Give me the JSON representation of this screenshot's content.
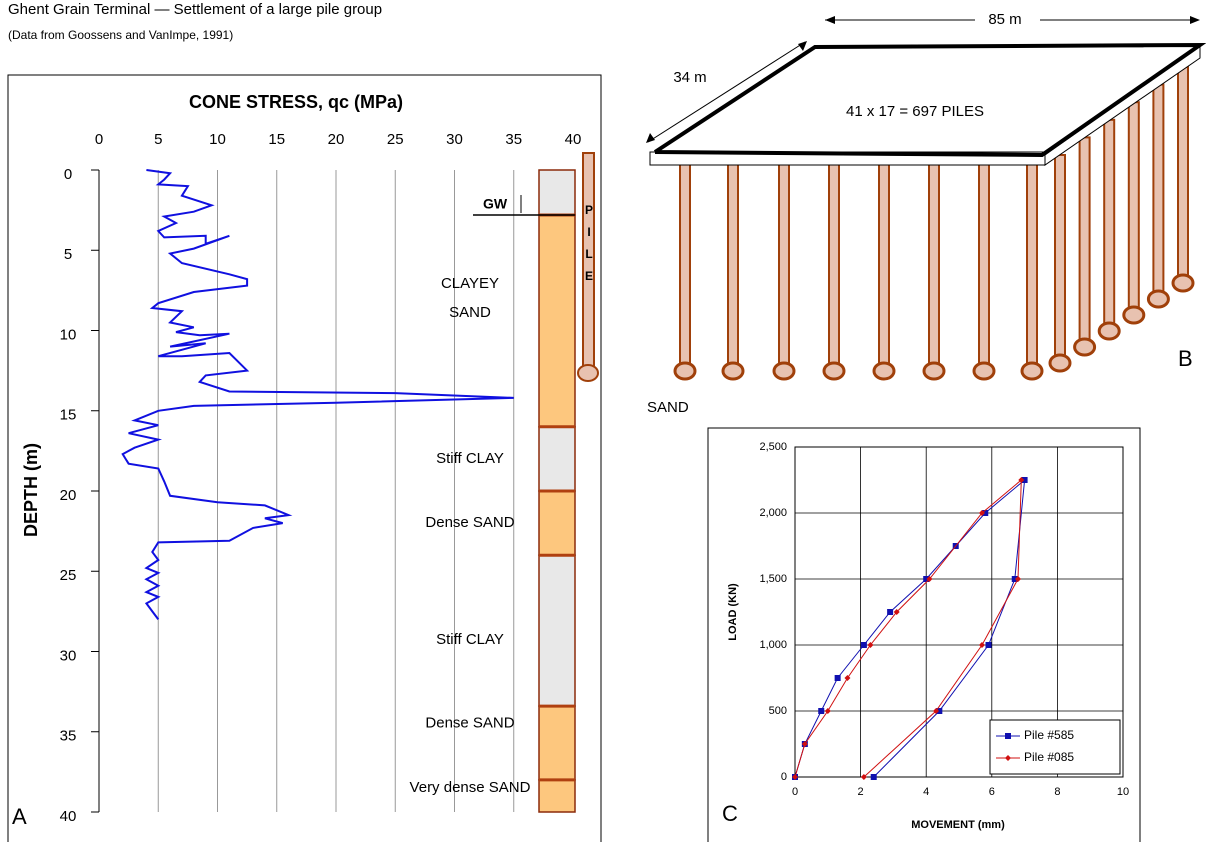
{
  "header": {
    "title": "Ghent Grain Terminal — Settlement of a large pile group",
    "subtitle": "(Data from Goossens and VanImpe, 1991)"
  },
  "chart_data": [
    {
      "type": "profile",
      "panel": "A",
      "title": "CONE STRESS, qc  (MPa)",
      "y_label": "DEPTH  (m)",
      "color": "#1010e0",
      "xlim": [
        0,
        40
      ],
      "xticks": [
        0,
        5,
        10,
        15,
        20,
        25,
        30,
        35,
        40
      ],
      "ylim": [
        0,
        40
      ],
      "yticks": [
        0,
        5,
        10,
        15,
        20,
        25,
        30,
        35,
        40
      ],
      "y_inverted": true,
      "grid": true,
      "qc": [
        4,
        6,
        5.5,
        5,
        7.5,
        7,
        9.5,
        8,
        5.5,
        6.5,
        5,
        5.5,
        9,
        9,
        11,
        8,
        6,
        7,
        11,
        12.5,
        12.5,
        8,
        5,
        4.5,
        7,
        6,
        8,
        6.5,
        8.5,
        11,
        6,
        9,
        5,
        7,
        11,
        12.5,
        9,
        8.5,
        11,
        25,
        35,
        20,
        8,
        5,
        3,
        5,
        2.5,
        5,
        3,
        2,
        2.5,
        5,
        5.5,
        6,
        10,
        14,
        16,
        14,
        15.5,
        13,
        11,
        5,
        4.5,
        5,
        4,
        5,
        4,
        5,
        4,
        5,
        4,
        4.5,
        5
      ],
      "depth": [
        0,
        0.2,
        0.6,
        0.9,
        1,
        1.6,
        2.2,
        2.6,
        2.9,
        3.3,
        3.8,
        4.2,
        4.1,
        4.6,
        4.1,
        4.9,
        5.2,
        5.8,
        6.5,
        6.8,
        7.2,
        7.6,
        8.3,
        8.6,
        8.8,
        9.5,
        9.8,
        10.1,
        10.3,
        10.2,
        11,
        10.8,
        11.6,
        11.6,
        11.4,
        12.5,
        12.8,
        13.2,
        13.8,
        13.9,
        14.2,
        14.5,
        14.7,
        15,
        15.6,
        15.9,
        16.4,
        16.8,
        17.3,
        17.7,
        18.3,
        18.6,
        19.4,
        20.3,
        20.7,
        20.9,
        21.5,
        21.7,
        22,
        22.3,
        23.1,
        23.2,
        23.8,
        24.3,
        24.8,
        25.1,
        25.5,
        25.9,
        26.3,
        26.6,
        27,
        27.5,
        28
      ],
      "layers": [
        {
          "top": 0,
          "bottom": 2.8,
          "color": "#e8e8e8"
        },
        {
          "top": 2.8,
          "bottom": 16,
          "color": "#fdc77e"
        },
        {
          "top": 16,
          "bottom": 20,
          "color": "#e8e8e8"
        },
        {
          "top": 20,
          "bottom": 24,
          "color": "#fdc77e"
        },
        {
          "top": 24,
          "bottom": 33.4,
          "color": "#e8e8e8"
        },
        {
          "top": 33.4,
          "bottom": 38,
          "color": "#fdc77e"
        },
        {
          "top": 38,
          "bottom": 40,
          "color": "#fdc77e"
        }
      ],
      "soil_labels": [
        {
          "text": "CLAYEY",
          "depth": 7.1
        },
        {
          "text": "SAND",
          "depth": 8.9
        },
        {
          "text": "Stiff CLAY",
          "depth": 18
        },
        {
          "text": "Dense SAND",
          "depth": 22
        },
        {
          "text": "Stiff CLAY",
          "depth": 29.3
        },
        {
          "text": "Dense SAND",
          "depth": 34.5
        },
        {
          "text": "Very dense  SAND",
          "depth": 38.5
        }
      ],
      "groundwater": {
        "label": "GW",
        "depth": 2.8
      },
      "pile_letters": [
        "P",
        "I",
        "L",
        "E"
      ]
    },
    {
      "type": "line",
      "panel": "C",
      "x_label": "MOVEMENT  (mm)",
      "y_label": "LOAD (KN)",
      "xlim": [
        0,
        10
      ],
      "xticks": [
        0,
        2,
        4,
        6,
        8,
        10
      ],
      "ylim": [
        0,
        2500
      ],
      "yticks": [
        0,
        {
          "value": 500,
          "label": "500"
        },
        {
          "value": 1000,
          "label": "1,000"
        },
        {
          "value": 1500,
          "label": "1,500"
        },
        {
          "value": 2000,
          "label": "2,000"
        },
        {
          "value": 2500,
          "label": "2,500"
        }
      ],
      "grid": true,
      "legend": "bottom-right",
      "series": [
        {
          "name": "Pile #585",
          "color": "#1010b0",
          "marker": "square",
          "x": [
            0,
            0.3,
            0.8,
            1.3,
            2.1,
            2.9,
            4,
            4.9,
            5.8,
            7,
            6.7,
            5.9,
            4.4,
            2.4
          ],
          "values": [
            0,
            250,
            500,
            750,
            1000,
            1250,
            1500,
            1750,
            2000,
            2250,
            1500,
            1000,
            500,
            0
          ]
        },
        {
          "name": "Pile #085",
          "color": "#d01010",
          "marker": "diamond",
          "x": [
            0,
            0.3,
            1,
            1.6,
            2.3,
            3.1,
            4.1,
            5.7,
            6.9,
            6.8,
            5.7,
            4.3,
            2.1
          ],
          "values": [
            0,
            250,
            500,
            750,
            1000,
            1250,
            1500,
            2000,
            2250,
            1500,
            1000,
            500,
            0
          ]
        }
      ]
    }
  ],
  "diagram": {
    "length": "85 m",
    "width": "34 m",
    "piles": "41 x 17 = 697  PILES",
    "soil": "SAND",
    "panel": "B"
  }
}
